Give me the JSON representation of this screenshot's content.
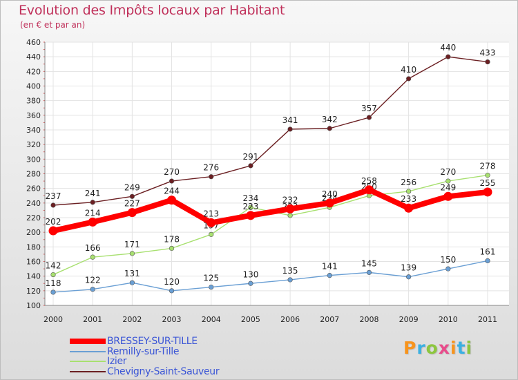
{
  "title": "Evolution des Impôts locaux par Habitant",
  "subtitle": "(en € et par an)",
  "logo": {
    "text": "Proxiti",
    "letters": [
      "P",
      "r",
      "o",
      "x",
      "i",
      "t",
      "i"
    ],
    "colors": [
      "#f7941d",
      "#3ab0e2",
      "#8dc63f",
      "#e84c8b",
      "#f7941d",
      "#3ab0e2",
      "#8dc63f"
    ]
  },
  "chart_data": {
    "type": "line",
    "x": [
      "2000",
      "2001",
      "2002",
      "2003",
      "2004",
      "2005",
      "2006",
      "2007",
      "2008",
      "2009",
      "2010",
      "2011"
    ],
    "ylim": [
      100,
      460
    ],
    "yticks": [
      100,
      120,
      140,
      160,
      180,
      200,
      220,
      240,
      260,
      280,
      300,
      320,
      340,
      360,
      380,
      400,
      420,
      440,
      460
    ],
    "grid": true,
    "legend_position": "bottom-left",
    "series": [
      {
        "name": "Chevigny-Saint-Sauveur",
        "color": "#6b1f22",
        "values": [
          237,
          241,
          249,
          270,
          276,
          291,
          341,
          342,
          357,
          410,
          440,
          433
        ]
      },
      {
        "name": "Izier",
        "color": "#a8e070",
        "values": [
          142,
          166,
          171,
          178,
          197,
          234,
          223,
          234,
          250,
          256,
          270,
          278
        ]
      },
      {
        "name": "Remilly-sur-Tille",
        "color": "#6a9fd4",
        "values": [
          118,
          122,
          131,
          120,
          125,
          130,
          135,
          141,
          145,
          139,
          150,
          161
        ]
      },
      {
        "name": "BRESSEY-SUR-TILLE",
        "color": "#ff0000",
        "values": [
          202,
          214,
          227,
          244,
          213,
          223,
          232,
          240,
          258,
          233,
          249,
          255
        ]
      }
    ]
  },
  "legend": [
    {
      "label": "BRESSEY-SUR-TILLE",
      "color": "#ff0000"
    },
    {
      "label": "Remilly-sur-Tille",
      "color": "#6a9fd4"
    },
    {
      "label": "Izier",
      "color": "#a8e070"
    },
    {
      "label": "Chevigny-Saint-Sauveur",
      "color": "#6b1f22"
    }
  ]
}
